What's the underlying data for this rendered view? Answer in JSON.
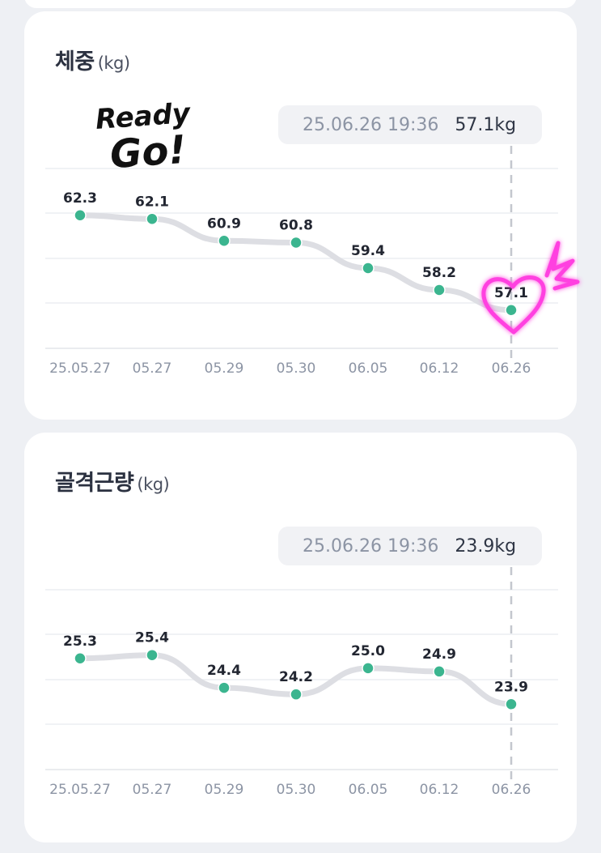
{
  "chart_data": [
    {
      "type": "line",
      "title": "체중",
      "unit": "(kg)",
      "categories": [
        "25.05.27",
        "05.27",
        "05.29",
        "05.30",
        "06.05",
        "06.12",
        "06.26"
      ],
      "values": [
        62.3,
        62.1,
        60.9,
        60.8,
        59.4,
        58.2,
        57.1
      ],
      "value_labels": [
        "62.3",
        "62.1",
        "60.9",
        "60.8",
        "59.4",
        "58.2",
        "57.1"
      ],
      "ylim": [
        55,
        65
      ],
      "grid": true,
      "tooltip": {
        "date": "25.06.26 19:36",
        "value": "57.1kg"
      },
      "line_color": "#dddee3",
      "point_color": "#3bb58f"
    },
    {
      "type": "line",
      "title": "골격근량",
      "unit": "(kg)",
      "categories": [
        "25.05.27",
        "05.27",
        "05.29",
        "05.30",
        "06.05",
        "06.12",
        "06.26"
      ],
      "values": [
        25.3,
        25.4,
        24.4,
        24.2,
        25.0,
        24.9,
        23.9
      ],
      "value_labels": [
        "25.3",
        "25.4",
        "24.4",
        "24.2",
        "25.0",
        "24.9",
        "23.9"
      ],
      "ylim": [
        21.9,
        27.4
      ],
      "grid": true,
      "tooltip": {
        "date": "25.06.26 19:36",
        "value": "23.9kg"
      },
      "line_color": "#dddee3",
      "point_color": "#3bb58f"
    }
  ],
  "sticker": {
    "line1": "Ready",
    "line2": "Go!"
  },
  "colors": {
    "background": "#eef0f4",
    "card": "#ffffff",
    "heart": "#ff3fe0",
    "text": "#2b3140",
    "axis_text": "#8c94a4"
  }
}
